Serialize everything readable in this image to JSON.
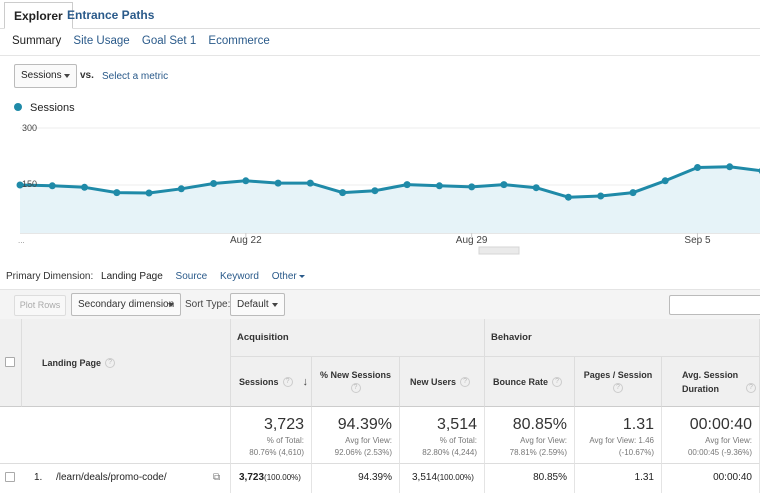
{
  "tabs": {
    "explorer": "Explorer",
    "entrance_paths": "Entrance Paths"
  },
  "subtabs": [
    "Summary",
    "Site Usage",
    "Goal Set 1",
    "Ecommerce"
  ],
  "metric_selector": {
    "value": "Sessions",
    "vs": "vs.",
    "select_metric": "Select a metric"
  },
  "legend": {
    "label": "Sessions",
    "color": "#1f8aa8"
  },
  "chart_data": {
    "type": "area",
    "series": [
      {
        "name": "Sessions",
        "values": [
          150,
          148,
          144,
          130,
          129,
          140,
          154,
          161,
          155,
          155,
          130,
          135,
          151,
          148,
          145,
          151,
          143,
          118,
          121,
          130,
          161,
          196,
          198,
          187
        ]
      }
    ],
    "y_ticks": [
      "300",
      "150"
    ],
    "x_ticks": [
      {
        "index": 7,
        "label": "Aug 22"
      },
      {
        "index": 14,
        "label": "Aug 29"
      },
      {
        "index": 21,
        "label": "Sep 5"
      }
    ],
    "x_start_label": "...",
    "ylim": [
      0,
      300
    ],
    "color": "#1f8aa8",
    "fill": "#e6f3f8"
  },
  "primary_dimension": {
    "label": "Primary Dimension:",
    "current": "Landing Page",
    "links": [
      "Source",
      "Keyword"
    ],
    "other": "Other"
  },
  "toolbar": {
    "plot_rows": "Plot Rows",
    "secondary_dimension": "Secondary dimension",
    "sort_type_label": "Sort Type:",
    "sort_type_value": "Default",
    "search_placeholder": ""
  },
  "table": {
    "landing_page_header": "Landing Page",
    "acquisition": "Acquisition",
    "behavior": "Behavior",
    "columns": [
      "Sessions",
      "% New Sessions",
      "New Users",
      "Bounce Rate",
      "Pages / Session",
      "Avg. Session Duration"
    ],
    "totals": [
      {
        "big": "3,723",
        "small1": "% of Total:",
        "small2": "80.76% (4,610)"
      },
      {
        "big": "94.39%",
        "small1": "Avg for View:",
        "small2": "92.06% (2.53%)"
      },
      {
        "big": "3,514",
        "small1": "% of Total:",
        "small2": "82.80% (4,244)"
      },
      {
        "big": "80.85%",
        "small1": "Avg for View:",
        "small2": "78.81% (2.59%)"
      },
      {
        "big": "1.31",
        "small1": "Avg for View: 1.46",
        "small2": "(-10.67%)"
      },
      {
        "big": "00:00:40",
        "small1": "Avg for View:",
        "small2": "00:00:45 (-9.36%)"
      }
    ],
    "rows": [
      {
        "index": "1.",
        "page": "/learn/deals/promo-code/",
        "sessions": "3,723",
        "sessions_pct": "(100.00%)",
        "new_sessions": "94.39%",
        "new_users": "3,514",
        "new_users_pct": "(100.00%)",
        "bounce_rate": "80.85%",
        "pages_session": "1.31",
        "avg_duration": "00:00:40"
      }
    ]
  }
}
